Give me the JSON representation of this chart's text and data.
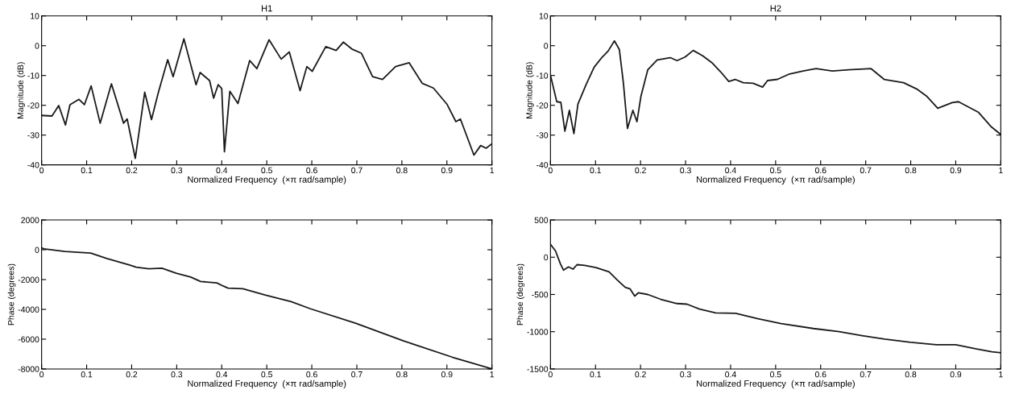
{
  "chart_data": [
    {
      "type": "line",
      "title": "H1",
      "xlabel": "Normalized Frequency  (×π rad/sample)",
      "ylabel": "Magnitude (dB)",
      "xlim": [
        0,
        1
      ],
      "ylim": [
        -40,
        10
      ],
      "xticks": [
        0,
        0.1,
        0.2,
        0.3,
        0.4,
        0.5,
        0.6,
        0.7,
        0.8,
        0.9,
        1
      ],
      "yticks": [
        -40,
        -30,
        -20,
        -10,
        0,
        10
      ],
      "grid": false,
      "legend": false,
      "x": [
        0,
        0.023,
        0.038,
        0.053,
        0.063,
        0.083,
        0.095,
        0.11,
        0.13,
        0.155,
        0.182,
        0.19,
        0.208,
        0.229,
        0.244,
        0.259,
        0.28,
        0.292,
        0.316,
        0.343,
        0.352,
        0.373,
        0.382,
        0.392,
        0.4,
        0.406,
        0.418,
        0.436,
        0.462,
        0.478,
        0.505,
        0.532,
        0.55,
        0.574,
        0.589,
        0.601,
        0.631,
        0.654,
        0.67,
        0.69,
        0.71,
        0.735,
        0.757,
        0.786,
        0.816,
        0.845,
        0.87,
        0.9,
        0.92,
        0.93,
        0.96,
        0.975,
        0.987,
        1
      ],
      "series": [
        {
          "color": "#1a1a1a",
          "values": [
            -23.4,
            -23.6,
            -20.1,
            -26.6,
            -19.8,
            -18,
            -19.8,
            -13.5,
            -26,
            -12.8,
            -26,
            -24.6,
            -37.8,
            -15.6,
            -24.8,
            -15.8,
            -4.7,
            -10.4,
            2.3,
            -13.1,
            -9,
            -11.7,
            -17.6,
            -13.1,
            -14.4,
            -35.6,
            -15.3,
            -19.4,
            -5,
            -7.7,
            2,
            -4.5,
            -2.1,
            -15.1,
            -7,
            -8.6,
            -0.3,
            -1.6,
            1.2,
            -1.2,
            -2.5,
            -10.4,
            -11.3,
            -7,
            -5.7,
            -12.6,
            -14.2,
            -19.6,
            -25.5,
            -24.6,
            -36.7,
            -33.5,
            -34.4,
            -32.9
          ]
        }
      ]
    },
    {
      "type": "line",
      "title": "H2",
      "xlabel": "Normalized Frequency  (×π rad/sample)",
      "ylabel": "Magnitude (dB)",
      "xlim": [
        0,
        1
      ],
      "ylim": [
        -40,
        10
      ],
      "xticks": [
        0,
        0.1,
        0.2,
        0.3,
        0.4,
        0.5,
        0.6,
        0.7,
        0.8,
        0.9,
        1
      ],
      "yticks": [
        -40,
        -30,
        -20,
        -10,
        0,
        10
      ],
      "grid": false,
      "legend": false,
      "x": [
        0,
        0.014,
        0.023,
        0.032,
        0.042,
        0.052,
        0.061,
        0.079,
        0.097,
        0.115,
        0.128,
        0.142,
        0.153,
        0.162,
        0.171,
        0.183,
        0.192,
        0.201,
        0.216,
        0.237,
        0.266,
        0.281,
        0.299,
        0.317,
        0.338,
        0.36,
        0.378,
        0.396,
        0.41,
        0.428,
        0.45,
        0.471,
        0.482,
        0.504,
        0.529,
        0.561,
        0.59,
        0.626,
        0.662,
        0.712,
        0.741,
        0.784,
        0.813,
        0.835,
        0.86,
        0.892,
        0.906,
        0.95,
        0.978,
        1
      ],
      "series": [
        {
          "color": "#1a1a1a",
          "values": [
            -9.9,
            -18.8,
            -19,
            -28.7,
            -21.7,
            -29.5,
            -19.6,
            -13.1,
            -7.2,
            -3.8,
            -1.8,
            1.6,
            -1.3,
            -12.6,
            -27.8,
            -21.7,
            -25.5,
            -16.9,
            -8.1,
            -4.8,
            -4,
            -5,
            -3.8,
            -1.6,
            -3.4,
            -5.9,
            -8.8,
            -12,
            -11.3,
            -12.4,
            -12.6,
            -13.9,
            -11.7,
            -11.3,
            -9.6,
            -8.5,
            -7.7,
            -8.5,
            -8.1,
            -7.7,
            -11.3,
            -12.4,
            -14.5,
            -16.9,
            -21,
            -19.1,
            -18.8,
            -22.3,
            -27.1,
            -29.8
          ]
        }
      ]
    },
    {
      "type": "line",
      "xlabel": "Normalized Frequency  (×π rad/sample)",
      "ylabel": "Phase (degrees)",
      "xlim": [
        0,
        1
      ],
      "ylim": [
        -8000,
        2000
      ],
      "xticks": [
        0,
        0.1,
        0.2,
        0.3,
        0.4,
        0.5,
        0.6,
        0.7,
        0.8,
        0.9,
        1
      ],
      "yticks": [
        -8000,
        -6000,
        -4000,
        -2000,
        0,
        2000
      ],
      "grid": false,
      "legend": false,
      "x": [
        0,
        0.005,
        0.052,
        0.109,
        0.145,
        0.195,
        0.21,
        0.238,
        0.267,
        0.299,
        0.331,
        0.353,
        0.389,
        0.403,
        0.414,
        0.447,
        0.496,
        0.554,
        0.597,
        0.697,
        0.805,
        0.913,
        0.956,
        1
      ],
      "series": [
        {
          "color": "#1a1a1a",
          "values": [
            130,
            60,
            -110,
            -220,
            -590,
            -1020,
            -1170,
            -1280,
            -1240,
            -1570,
            -1830,
            -2130,
            -2220,
            -2430,
            -2570,
            -2610,
            -3040,
            -3480,
            -3960,
            -4930,
            -6130,
            -7220,
            -7610,
            -7990
          ]
        }
      ]
    },
    {
      "type": "line",
      "xlabel": "Normalized Frequency  (×π rad/sample)",
      "ylabel": "Phase (degrees)",
      "xlim": [
        0,
        1
      ],
      "ylim": [
        -1500,
        500
      ],
      "xticks": [
        0,
        0.1,
        0.2,
        0.3,
        0.4,
        0.5,
        0.6,
        0.7,
        0.8,
        0.9,
        1
      ],
      "yticks": [
        -1500,
        -1000,
        -500,
        0,
        500
      ],
      "grid": false,
      "legend": false,
      "x": [
        0,
        0.011,
        0.022,
        0.029,
        0.04,
        0.05,
        0.059,
        0.076,
        0.101,
        0.13,
        0.148,
        0.166,
        0.177,
        0.187,
        0.195,
        0.216,
        0.245,
        0.281,
        0.303,
        0.331,
        0.367,
        0.411,
        0.461,
        0.512,
        0.584,
        0.641,
        0.692,
        0.742,
        0.8,
        0.857,
        0.9,
        0.944,
        0.98,
        1
      ],
      "series": [
        {
          "color": "#1a1a1a",
          "values": [
            174,
            87,
            -87,
            -174,
            -130,
            -160,
            -100,
            -109,
            -139,
            -196,
            -304,
            -404,
            -426,
            -522,
            -478,
            -500,
            -565,
            -622,
            -630,
            -696,
            -748,
            -752,
            -826,
            -891,
            -957,
            -1000,
            -1052,
            -1100,
            -1143,
            -1174,
            -1174,
            -1230,
            -1270,
            -1283
          ]
        }
      ]
    }
  ]
}
